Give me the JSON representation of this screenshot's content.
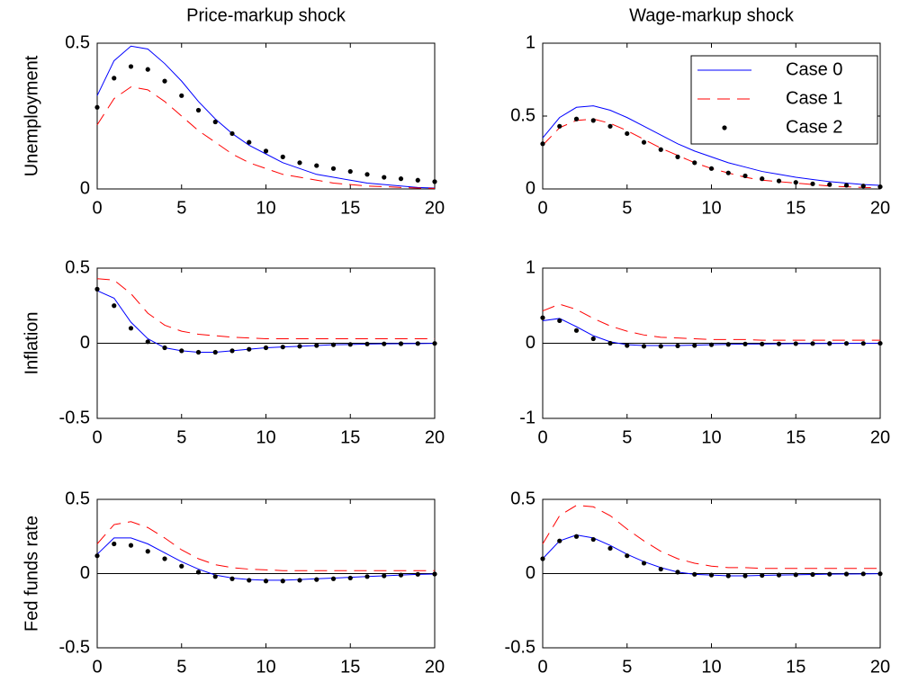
{
  "chart_data": [
    {
      "type": "line",
      "title": "Price-markup shock",
      "ylabel": "Unemployment",
      "x": [
        0,
        1,
        2,
        3,
        4,
        5,
        6,
        7,
        8,
        9,
        10,
        11,
        12,
        13,
        14,
        15,
        16,
        17,
        18,
        19,
        20
      ],
      "xlim": [
        0,
        20
      ],
      "xticks": [
        0,
        5,
        10,
        15,
        20
      ],
      "ylim": [
        0,
        0.5
      ],
      "yticks": [
        0,
        0.5
      ],
      "zero_line": false,
      "series": [
        {
          "name": "Case 0",
          "color": "#0000ff",
          "style": "solid",
          "values": [
            0.32,
            0.44,
            0.49,
            0.48,
            0.43,
            0.37,
            0.3,
            0.24,
            0.19,
            0.15,
            0.12,
            0.09,
            0.07,
            0.05,
            0.04,
            0.03,
            0.02,
            0.015,
            0.01,
            0.005,
            0.003
          ]
        },
        {
          "name": "Case 1",
          "color": "#ff0000",
          "style": "dashed",
          "values": [
            0.22,
            0.31,
            0.35,
            0.34,
            0.3,
            0.25,
            0.2,
            0.16,
            0.12,
            0.09,
            0.07,
            0.05,
            0.04,
            0.03,
            0.02,
            0.015,
            0.01,
            0.008,
            0.005,
            0.003,
            0.002
          ]
        },
        {
          "name": "Case 2",
          "color": "#000000",
          "style": "dots",
          "values": [
            0.28,
            0.38,
            0.42,
            0.41,
            0.37,
            0.32,
            0.27,
            0.23,
            0.19,
            0.16,
            0.13,
            0.11,
            0.09,
            0.08,
            0.07,
            0.06,
            0.05,
            0.04,
            0.035,
            0.03,
            0.025
          ]
        }
      ]
    },
    {
      "type": "line",
      "title": "Wage-markup shock",
      "x": [
        0,
        1,
        2,
        3,
        4,
        5,
        6,
        7,
        8,
        9,
        10,
        11,
        12,
        13,
        14,
        15,
        16,
        17,
        18,
        19,
        20
      ],
      "xlim": [
        0,
        20
      ],
      "xticks": [
        0,
        5,
        10,
        15,
        20
      ],
      "ylim": [
        0,
        1
      ],
      "yticks": [
        0,
        0.5,
        1
      ],
      "zero_line": false,
      "legend": "upper right",
      "series": [
        {
          "name": "Case 0",
          "color": "#0000ff",
          "style": "solid",
          "values": [
            0.35,
            0.49,
            0.56,
            0.57,
            0.54,
            0.49,
            0.43,
            0.37,
            0.31,
            0.26,
            0.22,
            0.18,
            0.15,
            0.12,
            0.1,
            0.08,
            0.065,
            0.05,
            0.04,
            0.03,
            0.025
          ]
        },
        {
          "name": "Case 1",
          "color": "#ff0000",
          "style": "dashed",
          "values": [
            0.3,
            0.42,
            0.47,
            0.48,
            0.45,
            0.4,
            0.34,
            0.28,
            0.23,
            0.18,
            0.14,
            0.11,
            0.08,
            0.06,
            0.05,
            0.04,
            0.03,
            0.02,
            0.015,
            0.01,
            0.008
          ]
        },
        {
          "name": "Case 2",
          "color": "#000000",
          "style": "dots",
          "values": [
            0.31,
            0.43,
            0.48,
            0.47,
            0.43,
            0.38,
            0.32,
            0.27,
            0.22,
            0.18,
            0.14,
            0.11,
            0.09,
            0.07,
            0.055,
            0.045,
            0.035,
            0.03,
            0.025,
            0.02,
            0.015
          ]
        }
      ]
    },
    {
      "type": "line",
      "ylabel": "Inflation",
      "x": [
        0,
        1,
        2,
        3,
        4,
        5,
        6,
        7,
        8,
        9,
        10,
        11,
        12,
        13,
        14,
        15,
        16,
        17,
        18,
        19,
        20
      ],
      "xlim": [
        0,
        20
      ],
      "xticks": [
        0,
        5,
        10,
        15,
        20
      ],
      "ylim": [
        -0.5,
        0.5
      ],
      "yticks": [
        -0.5,
        0,
        0.5
      ],
      "zero_line": true,
      "series": [
        {
          "name": "Case 0",
          "color": "#0000ff",
          "style": "solid",
          "values": [
            0.35,
            0.3,
            0.14,
            0.03,
            -0.03,
            -0.05,
            -0.06,
            -0.06,
            -0.05,
            -0.04,
            -0.03,
            -0.025,
            -0.02,
            -0.015,
            -0.01,
            -0.008,
            -0.005,
            -0.004,
            -0.003,
            -0.002,
            -0.001
          ]
        },
        {
          "name": "Case 1",
          "color": "#ff0000",
          "style": "dashed",
          "values": [
            0.43,
            0.42,
            0.33,
            0.2,
            0.12,
            0.08,
            0.06,
            0.05,
            0.04,
            0.035,
            0.03,
            0.03,
            0.03,
            0.03,
            0.03,
            0.03,
            0.03,
            0.03,
            0.03,
            0.03,
            0.03
          ]
        },
        {
          "name": "Case 2",
          "color": "#000000",
          "style": "dots",
          "values": [
            0.36,
            0.25,
            0.1,
            0.01,
            -0.03,
            -0.05,
            -0.06,
            -0.06,
            -0.05,
            -0.04,
            -0.03,
            -0.025,
            -0.02,
            -0.015,
            -0.01,
            -0.008,
            -0.005,
            -0.004,
            -0.003,
            -0.002,
            -0.001
          ]
        }
      ]
    },
    {
      "type": "line",
      "x": [
        0,
        1,
        2,
        3,
        4,
        5,
        6,
        7,
        8,
        9,
        10,
        11,
        12,
        13,
        14,
        15,
        16,
        17,
        18,
        19,
        20
      ],
      "xlim": [
        0,
        20
      ],
      "xticks": [
        0,
        5,
        10,
        15,
        20
      ],
      "ylim": [
        -1,
        1
      ],
      "yticks": [
        -1,
        0,
        1
      ],
      "zero_line": true,
      "series": [
        {
          "name": "Case 0",
          "color": "#0000ff",
          "style": "solid",
          "values": [
            0.3,
            0.33,
            0.22,
            0.1,
            0.02,
            -0.02,
            -0.03,
            -0.03,
            -0.03,
            -0.025,
            -0.02,
            -0.015,
            -0.01,
            -0.01,
            -0.008,
            -0.005,
            -0.004,
            -0.003,
            -0.002,
            -0.002,
            -0.001
          ]
        },
        {
          "name": "Case 1",
          "color": "#ff0000",
          "style": "dashed",
          "values": [
            0.43,
            0.52,
            0.45,
            0.33,
            0.23,
            0.16,
            0.11,
            0.08,
            0.07,
            0.06,
            0.05,
            0.05,
            0.05,
            0.04,
            0.04,
            0.04,
            0.04,
            0.04,
            0.04,
            0.04,
            0.04
          ]
        },
        {
          "name": "Case 2",
          "color": "#000000",
          "style": "dots",
          "values": [
            0.34,
            0.3,
            0.17,
            0.06,
            0.0,
            -0.03,
            -0.04,
            -0.04,
            -0.035,
            -0.03,
            -0.02,
            -0.015,
            -0.01,
            -0.01,
            -0.008,
            -0.005,
            -0.004,
            -0.003,
            -0.002,
            -0.002,
            -0.001
          ]
        }
      ]
    },
    {
      "type": "line",
      "ylabel": "Fed funds rate",
      "x": [
        0,
        1,
        2,
        3,
        4,
        5,
        6,
        7,
        8,
        9,
        10,
        11,
        12,
        13,
        14,
        15,
        16,
        17,
        18,
        19,
        20
      ],
      "xlim": [
        0,
        20
      ],
      "xticks": [
        0,
        5,
        10,
        15,
        20
      ],
      "ylim": [
        -0.5,
        0.5
      ],
      "yticks": [
        -0.5,
        0,
        0.5
      ],
      "zero_line": true,
      "series": [
        {
          "name": "Case 0",
          "color": "#0000ff",
          "style": "solid",
          "values": [
            0.13,
            0.24,
            0.24,
            0.2,
            0.14,
            0.08,
            0.03,
            -0.01,
            -0.03,
            -0.04,
            -0.045,
            -0.045,
            -0.04,
            -0.035,
            -0.03,
            -0.025,
            -0.02,
            -0.015,
            -0.01,
            -0.005,
            -0.003
          ]
        },
        {
          "name": "Case 1",
          "color": "#ff0000",
          "style": "dashed",
          "values": [
            0.2,
            0.33,
            0.35,
            0.31,
            0.24,
            0.16,
            0.1,
            0.06,
            0.04,
            0.03,
            0.025,
            0.02,
            0.02,
            0.02,
            0.02,
            0.02,
            0.02,
            0.02,
            0.02,
            0.02,
            0.02
          ]
        },
        {
          "name": "Case 2",
          "color": "#000000",
          "style": "dots",
          "values": [
            0.12,
            0.2,
            0.19,
            0.15,
            0.1,
            0.05,
            0.01,
            -0.02,
            -0.035,
            -0.045,
            -0.05,
            -0.05,
            -0.045,
            -0.04,
            -0.035,
            -0.03,
            -0.02,
            -0.015,
            -0.01,
            -0.005,
            -0.003
          ]
        }
      ]
    },
    {
      "type": "line",
      "x": [
        0,
        1,
        2,
        3,
        4,
        5,
        6,
        7,
        8,
        9,
        10,
        11,
        12,
        13,
        14,
        15,
        16,
        17,
        18,
        19,
        20
      ],
      "xlim": [
        0,
        20
      ],
      "xticks": [
        0,
        5,
        10,
        15,
        20
      ],
      "ylim": [
        -0.5,
        0.5
      ],
      "yticks": [
        -0.5,
        0,
        0.5
      ],
      "zero_line": true,
      "series": [
        {
          "name": "Case 0",
          "color": "#0000ff",
          "style": "solid",
          "values": [
            0.1,
            0.22,
            0.26,
            0.24,
            0.19,
            0.13,
            0.08,
            0.04,
            0.01,
            -0.005,
            -0.01,
            -0.015,
            -0.015,
            -0.012,
            -0.01,
            -0.008,
            -0.006,
            -0.004,
            -0.003,
            -0.002,
            -0.001
          ]
        },
        {
          "name": "Case 1",
          "color": "#ff0000",
          "style": "dashed",
          "values": [
            0.2,
            0.39,
            0.46,
            0.45,
            0.39,
            0.3,
            0.22,
            0.15,
            0.1,
            0.07,
            0.05,
            0.04,
            0.04,
            0.035,
            0.035,
            0.035,
            0.035,
            0.035,
            0.035,
            0.035,
            0.035
          ]
        },
        {
          "name": "Case 2",
          "color": "#000000",
          "style": "dots",
          "values": [
            0.1,
            0.22,
            0.25,
            0.23,
            0.17,
            0.12,
            0.07,
            0.03,
            0.01,
            -0.005,
            -0.01,
            -0.015,
            -0.015,
            -0.012,
            -0.01,
            -0.008,
            -0.006,
            -0.004,
            -0.003,
            -0.002,
            -0.001
          ]
        }
      ]
    }
  ]
}
